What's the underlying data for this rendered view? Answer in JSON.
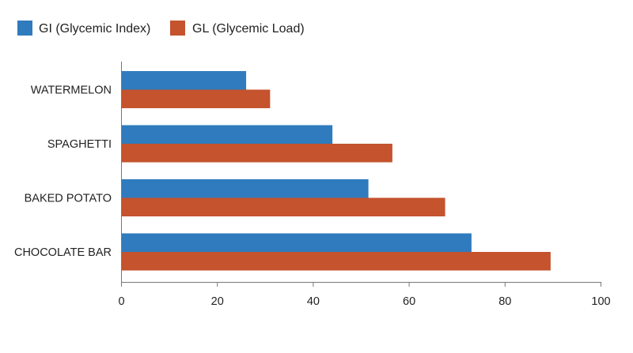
{
  "chart_data": {
    "type": "bar",
    "orientation": "horizontal",
    "categories": [
      "WATERMELON",
      "SPAGHETTI",
      "BAKED POTATO",
      "CHOCOLATE BAR"
    ],
    "series": [
      {
        "name": "GI (Glycemic Index)",
        "color": "#2f7bbd",
        "values": [
          26,
          44,
          51.5,
          73
        ]
      },
      {
        "name": "GL (Glycemic Load)",
        "color": "#c4532e",
        "values": [
          31,
          56.5,
          67.5,
          89.5
        ]
      }
    ],
    "x_ticks": [
      "0",
      "20",
      "40",
      "60",
      "80",
      "100"
    ],
    "xlim": [
      0,
      100
    ],
    "grid": false,
    "legend_position": "top-left"
  }
}
